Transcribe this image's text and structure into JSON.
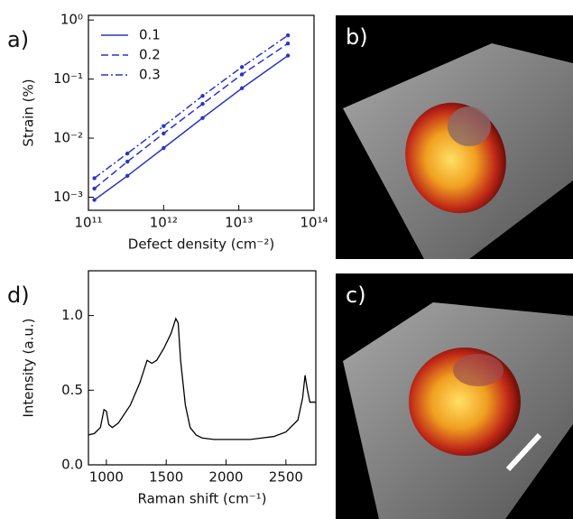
{
  "chart_data": [
    {
      "type": "line",
      "panel_label": "a)",
      "xlabel": "Defect density (cm⁻²)",
      "ylabel": "Strain (%)",
      "xscale": "log",
      "yscale": "log",
      "legend": "upper left",
      "xlim": [
        100000000000.0,
        100000000000000.0
      ],
      "ylim": [
        0.0006,
        1.2
      ],
      "xticks": [
        {
          "value": 100000000000.0,
          "label": "10¹¹"
        },
        {
          "value": 1000000000000.0,
          "label": "10¹²"
        },
        {
          "value": 10000000000000.0,
          "label": "10¹³"
        },
        {
          "value": 100000000000000.0,
          "label": "10¹⁴"
        }
      ],
      "yticks": [
        {
          "value": 0.001,
          "label": "10⁻³"
        },
        {
          "value": 0.01,
          "label": "10⁻²"
        },
        {
          "value": 0.1,
          "label": "10⁻¹"
        },
        {
          "value": 1,
          "label": "10⁰"
        }
      ],
      "x": [
        120000000000.0,
        330000000000.0,
        1000000000000.0,
        3300000000000.0,
        11000000000000.0,
        45000000000000.0
      ],
      "series": [
        {
          "name": "0.1",
          "color": "#2a35c8",
          "style": "solid",
          "values": [
            0.0009,
            0.0023,
            0.0068,
            0.022,
            0.07,
            0.25
          ]
        },
        {
          "name": "0.2",
          "color": "#2a35c8",
          "style": "dashed",
          "values": [
            0.0014,
            0.004,
            0.012,
            0.038,
            0.12,
            0.4
          ]
        },
        {
          "name": "0.3",
          "color": "#2a35c8",
          "style": "dashdot",
          "values": [
            0.0021,
            0.0055,
            0.016,
            0.052,
            0.16,
            0.55
          ]
        }
      ]
    },
    {
      "type": "line",
      "panel_label": "d)",
      "xlabel": "Raman shift (cm⁻¹)",
      "ylabel": "Intensity (a.u.)",
      "xlim": [
        850,
        2750
      ],
      "ylim": [
        0,
        1.3
      ],
      "xticks": [
        1000,
        1500,
        2000,
        2500
      ],
      "yticks": [
        {
          "value": 0,
          "label": "0.0"
        },
        0.5,
        {
          "value": 1,
          "label": "1.0"
        }
      ],
      "x": [
        850,
        900,
        950,
        980,
        1000,
        1020,
        1050,
        1100,
        1200,
        1280,
        1340,
        1380,
        1420,
        1480,
        1540,
        1580,
        1600,
        1620,
        1660,
        1700,
        1750,
        1800,
        1900,
        2000,
        2100,
        2200,
        2300,
        2400,
        2500,
        2600,
        2640,
        2660,
        2680,
        2700,
        2750
      ],
      "series": [
        {
          "name": null,
          "color": "#000000",
          "style": "solid",
          "values": [
            0.2,
            0.21,
            0.25,
            0.37,
            0.36,
            0.27,
            0.25,
            0.28,
            0.4,
            0.55,
            0.7,
            0.68,
            0.7,
            0.78,
            0.88,
            0.98,
            0.95,
            0.7,
            0.4,
            0.25,
            0.2,
            0.18,
            0.17,
            0.17,
            0.17,
            0.17,
            0.18,
            0.19,
            0.22,
            0.3,
            0.45,
            0.6,
            0.5,
            0.42,
            0.42
          ]
        }
      ]
    }
  ],
  "panels": [
    {
      "label": "b)"
    },
    {
      "label": "c)"
    }
  ]
}
